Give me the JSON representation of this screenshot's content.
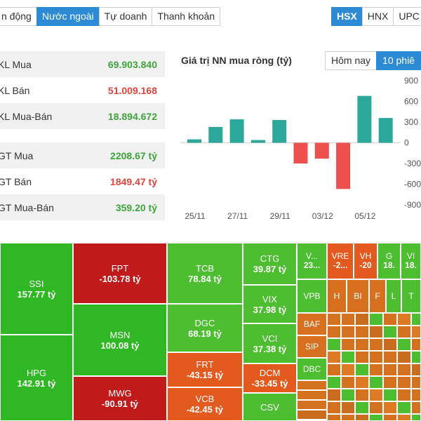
{
  "tabs": [
    {
      "label": "n động",
      "active": false
    },
    {
      "label": "Nước ngoài",
      "active": true
    },
    {
      "label": "Tự doanh",
      "active": false
    },
    {
      "label": "Thanh khoản",
      "active": false
    }
  ],
  "exchanges": [
    {
      "label": "HSX",
      "active": true
    },
    {
      "label": "HNX",
      "active": false
    },
    {
      "label": "UPC",
      "active": false
    }
  ],
  "stats": [
    {
      "label": "KL Mua",
      "value": "69.903.840",
      "color": "green"
    },
    {
      "label": "KL Bán",
      "value": "51.009.168",
      "color": "red"
    },
    {
      "label": "KL Mua-Bán",
      "value": "18.894.672",
      "color": "green"
    },
    {
      "label": "GT Mua",
      "value": "2208.67 tỷ",
      "color": "green"
    },
    {
      "label": "GT Bán",
      "value": "1849.47 tỷ",
      "color": "red"
    },
    {
      "label": "GT Mua-Bán",
      "value": "359.20 tỷ",
      "color": "green"
    }
  ],
  "chart_title": "Giá trị NN mua ròng (tỷ)",
  "periods": [
    {
      "label": "Hôm nay",
      "active": false
    },
    {
      "label": "10 phiê",
      "active": true
    }
  ],
  "chart_data": {
    "type": "bar",
    "title": "Giá trị NN mua ròng (tỷ)",
    "ylim": [
      -900,
      900
    ],
    "yticks": [
      900,
      600,
      300,
      0,
      -300,
      -600,
      -900
    ],
    "ytick_labels": [
      "900",
      "600",
      "300",
      "0",
      "-300",
      "-600",
      "-900"
    ],
    "xtick_labels": [
      "25/11",
      "27/11",
      "29/11",
      "03/12",
      "05/12"
    ],
    "values": [
      50,
      230,
      340,
      40,
      330,
      -300,
      -230,
      -670,
      680,
      360
    ],
    "positive_color": "#2ca89a",
    "negative_color": "#ee5050"
  },
  "treemap": {
    "cells": [
      {
        "t": "SSI",
        "v": "157.77 tỷ",
        "c": "g1"
      },
      {
        "t": "HPG",
        "v": "142.91 tỷ",
        "c": "g1"
      },
      {
        "t": "FPT",
        "v": "-103.78 tỷ",
        "c": "r1"
      },
      {
        "t": "MSN",
        "v": "100.08 tỷ",
        "c": "g1"
      },
      {
        "t": "MWG",
        "v": "-90.91 tỷ",
        "c": "r1"
      },
      {
        "t": "TCB",
        "v": "78.84 tỷ",
        "c": "g2"
      },
      {
        "t": "DGC",
        "v": "68.19 tỷ",
        "c": "g2"
      },
      {
        "t": "FRT",
        "v": "-43.15 tỷ",
        "c": "o1"
      },
      {
        "t": "VCB",
        "v": "-42.45 tỷ",
        "c": "o1"
      },
      {
        "t": "CTG",
        "v": "39.87 tỷ",
        "c": "g2"
      },
      {
        "t": "VIX",
        "v": "37.98 tỷ",
        "c": "g2"
      },
      {
        "t": "VCI",
        "v": "37.38 tỷ",
        "c": "g2"
      },
      {
        "t": "DCM",
        "v": "-33.45 tỷ",
        "c": "o1"
      },
      {
        "t": "CSV",
        "v": "",
        "c": "g2"
      },
      {
        "t": "V...",
        "v": "23...",
        "c": "g2"
      },
      {
        "t": "VRE",
        "v": "-2...",
        "c": "o1"
      },
      {
        "t": "VH",
        "v": "-20",
        "c": "o1"
      },
      {
        "t": "G",
        "v": "18.",
        "c": "g2"
      },
      {
        "t": "VI",
        "v": "18.",
        "c": "g2"
      },
      {
        "t": "VPB",
        "v": "",
        "c": "g2"
      },
      {
        "t": "H",
        "v": "",
        "c": "o2"
      },
      {
        "t": "BI",
        "v": "",
        "c": "o2"
      },
      {
        "t": "F",
        "v": "",
        "c": "o2"
      },
      {
        "t": "L",
        "v": "",
        "c": "g2"
      },
      {
        "t": "T",
        "v": "",
        "c": "g2"
      },
      {
        "t": "BAF",
        "v": "",
        "c": "o2"
      },
      {
        "t": "SIP",
        "v": "",
        "c": "o2"
      },
      {
        "t": "DBC",
        "v": "",
        "c": "g2"
      }
    ]
  }
}
